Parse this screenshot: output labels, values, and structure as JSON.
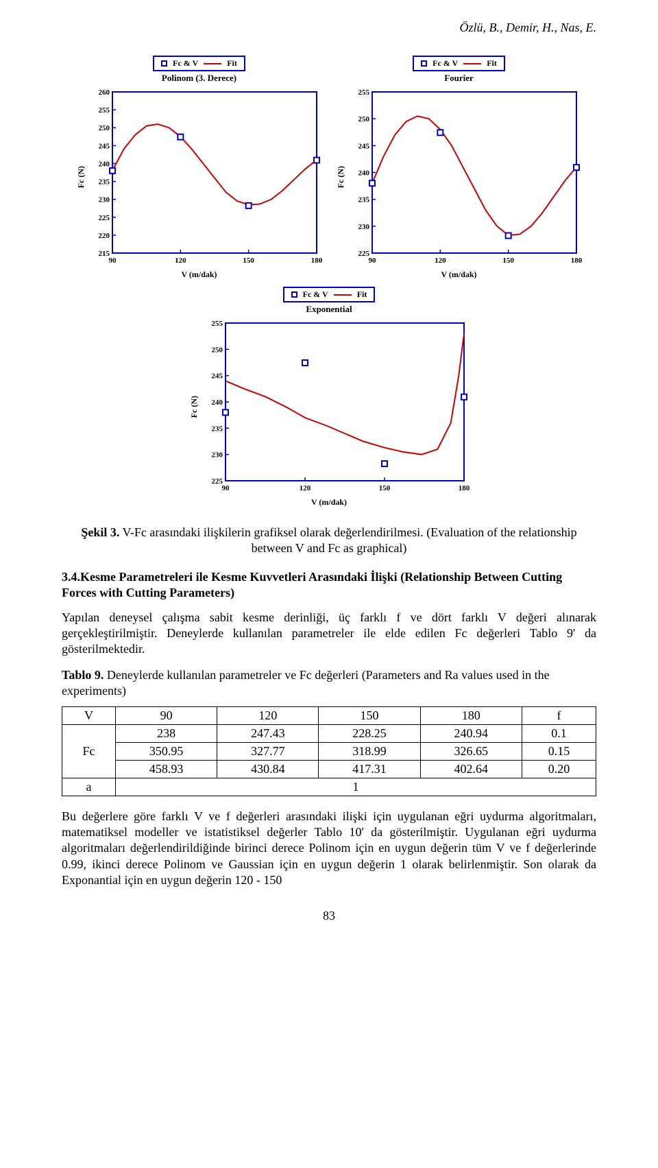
{
  "header": {
    "authors": "Özlü, B., Demir, H., Nas, E."
  },
  "legend": {
    "series1": "Fc & V",
    "series2": "Fit"
  },
  "axes": {
    "ylabel": "Fc (N)",
    "xlabel": "V (m/dak)"
  },
  "chart_colors": {
    "axis": "#0000cc",
    "marker_stroke": "#0000cc",
    "marker_fill": "none",
    "fit_line": "#cc0000",
    "background": "#ffffff"
  },
  "chart1": {
    "title": "Polinom (3. Derece)",
    "type": "line",
    "line_width": 2,
    "marker_size": 8,
    "xlim": [
      90,
      180
    ],
    "xticks": [
      90,
      120,
      150,
      180
    ],
    "ylim": [
      215,
      260
    ],
    "yticks": [
      215,
      220,
      225,
      230,
      235,
      240,
      245,
      250,
      255,
      260
    ],
    "data_x": [
      90,
      120,
      150,
      180
    ],
    "data_y": [
      238,
      247.43,
      228.25,
      240.94
    ],
    "fit_path": [
      [
        90,
        238
      ],
      [
        95,
        244
      ],
      [
        100,
        248
      ],
      [
        105,
        250.5
      ],
      [
        110,
        251
      ],
      [
        115,
        250
      ],
      [
        120,
        247.5
      ],
      [
        125,
        244
      ],
      [
        130,
        240
      ],
      [
        135,
        236
      ],
      [
        140,
        232
      ],
      [
        145,
        229.5
      ],
      [
        150,
        228.5
      ],
      [
        155,
        228.7
      ],
      [
        160,
        230
      ],
      [
        165,
        232.5
      ],
      [
        170,
        235.5
      ],
      [
        175,
        238.5
      ],
      [
        180,
        241
      ]
    ]
  },
  "chart2": {
    "title": "Fourier",
    "type": "line",
    "line_width": 2,
    "marker_size": 8,
    "xlim": [
      90,
      180
    ],
    "xticks": [
      90,
      120,
      150,
      180
    ],
    "ylim": [
      225,
      255
    ],
    "yticks": [
      225,
      230,
      235,
      240,
      245,
      250,
      255
    ],
    "data_x": [
      90,
      120,
      150,
      180
    ],
    "data_y": [
      238,
      247.43,
      228.25,
      240.94
    ],
    "fit_path": [
      [
        90,
        238
      ],
      [
        95,
        243
      ],
      [
        100,
        247
      ],
      [
        105,
        249.5
      ],
      [
        110,
        250.5
      ],
      [
        115,
        250
      ],
      [
        120,
        248
      ],
      [
        125,
        245
      ],
      [
        130,
        241
      ],
      [
        135,
        237
      ],
      [
        140,
        233
      ],
      [
        145,
        230
      ],
      [
        150,
        228.3
      ],
      [
        155,
        228.5
      ],
      [
        160,
        230
      ],
      [
        165,
        232.5
      ],
      [
        170,
        235.5
      ],
      [
        175,
        238.5
      ],
      [
        180,
        241
      ]
    ]
  },
  "chart3": {
    "title": "Exponential",
    "type": "line",
    "line_width": 2,
    "marker_size": 8,
    "xlim": [
      90,
      180
    ],
    "xticks": [
      90,
      120,
      150,
      180
    ],
    "ylim": [
      225,
      255
    ],
    "yticks": [
      225,
      230,
      235,
      240,
      245,
      250,
      255
    ],
    "data_x": [
      90,
      120,
      150,
      180
    ],
    "data_y": [
      238,
      247.43,
      228.25,
      240.94
    ],
    "fit_path": [
      [
        90,
        244
      ],
      [
        97,
        242.5
      ],
      [
        105,
        241
      ],
      [
        113,
        239
      ],
      [
        120,
        237
      ],
      [
        128,
        235.5
      ],
      [
        135,
        234
      ],
      [
        142,
        232.5
      ],
      [
        150,
        231.3
      ],
      [
        157,
        230.5
      ],
      [
        164,
        230
      ],
      [
        170,
        231
      ],
      [
        175,
        236
      ],
      [
        178,
        245
      ],
      [
        180,
        253
      ]
    ]
  },
  "figure_caption": {
    "bold": "Şekil 3.",
    "tr": " V-Fc arasındaki ilişkilerin grafiksel olarak değerlendirilmesi. (Evaluation of the relationship between V and Fc as graphical)"
  },
  "section": {
    "num": "3.4.",
    "title": "Kesme Parametreleri ile Kesme Kuvvetleri Arasındaki İlişki (Relationship Between Cutting Forces with Cutting Parameters)"
  },
  "para1": "Yapılan deneysel çalışma sabit kesme derinliği, üç farklı f ve dört farklı V değeri alınarak gerçekleştirilmiştir. Deneylerde kullanılan parametreler ile elde edilen Fc değerleri Tablo 9' da gösterilmektedir.",
  "table_caption": {
    "bold": "Tablo 9.",
    "text": " Deneylerde kullanılan parametreler ve Fc değerleri (Parameters and Ra values used in the experiments)"
  },
  "table": {
    "headers": [
      "V",
      "90",
      "120",
      "150",
      "180",
      "f"
    ],
    "fc_label": "Fc",
    "rows": [
      [
        "238",
        "247.43",
        "228.25",
        "240.94",
        "0.1"
      ],
      [
        "350.95",
        "327.77",
        "318.99",
        "326.65",
        "0.15"
      ],
      [
        "458.93",
        "430.84",
        "417.31",
        "402.64",
        "0.20"
      ]
    ],
    "a_label": "a",
    "a_value": "1"
  },
  "para2": "Bu değerlere göre farklı V ve f değerleri arasındaki ilişki için uygulanan eğri uydurma algoritmaları, matematiksel modeller ve istatistiksel değerler Tablo 10' da gösterilmiştir. Uygulanan eğri uydurma algoritmaları değerlendirildiğinde birinci derece Polinom için en uygun değerin tüm V ve f değerlerinde 0.99, ikinci derece Polinom ve Gaussian için en uygun değerin 1 olarak belirlenmiştir. Son olarak da Exponantial için en uygun değerin 120 - 150",
  "page_number": "83"
}
